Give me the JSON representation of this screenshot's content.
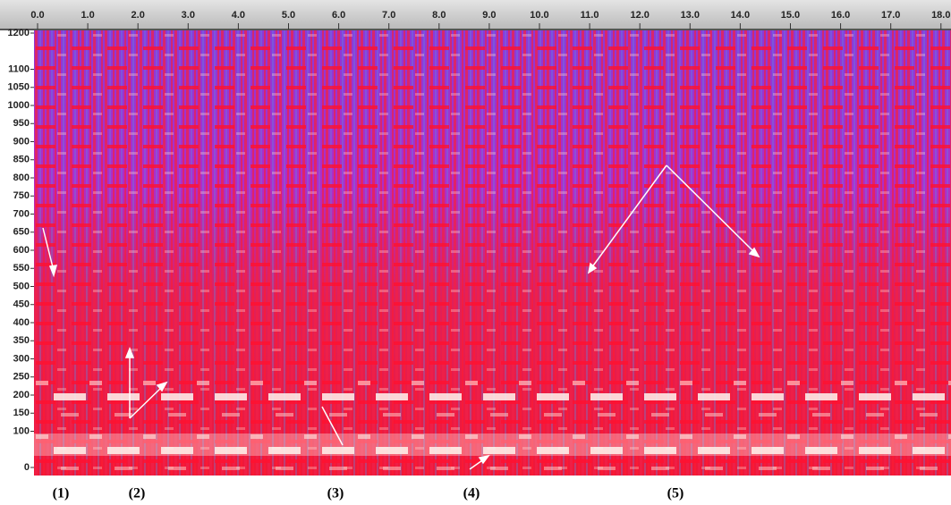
{
  "chart_data": {
    "type": "spectrogram",
    "xlim": [
      0,
      18.2
    ],
    "xticks": [
      {
        "value": 0,
        "label": "0.0"
      },
      {
        "value": 1,
        "label": "1.0"
      },
      {
        "value": 2,
        "label": "2.0"
      },
      {
        "value": 3,
        "label": "3.0"
      },
      {
        "value": 4,
        "label": "4.0"
      },
      {
        "value": 5,
        "label": "5.0"
      },
      {
        "value": 6,
        "label": "6.0"
      },
      {
        "value": 7,
        "label": "7.0"
      },
      {
        "value": 8,
        "label": "8.0"
      },
      {
        "value": 9,
        "label": "9.0"
      },
      {
        "value": 10,
        "label": "10.0"
      },
      {
        "value": 11,
        "label": "11.0"
      },
      {
        "value": 12,
        "label": "12.0"
      },
      {
        "value": 13,
        "label": "13.0"
      },
      {
        "value": 14,
        "label": "14.0"
      },
      {
        "value": 15,
        "label": "15.0"
      },
      {
        "value": 16,
        "label": "16.0"
      },
      {
        "value": 17,
        "label": "17.0"
      },
      {
        "value": 18,
        "label": "18.0"
      }
    ],
    "ylim": [
      0,
      1200
    ],
    "yticks": [
      0,
      100,
      150,
      200,
      250,
      300,
      350,
      400,
      450,
      500,
      550,
      600,
      650,
      700,
      750,
      800,
      850,
      900,
      950,
      1000,
      1050,
      1100,
      1200
    ],
    "annotations": [
      "(1)",
      "(2)",
      "(3)",
      "(4)",
      "(5)"
    ]
  }
}
